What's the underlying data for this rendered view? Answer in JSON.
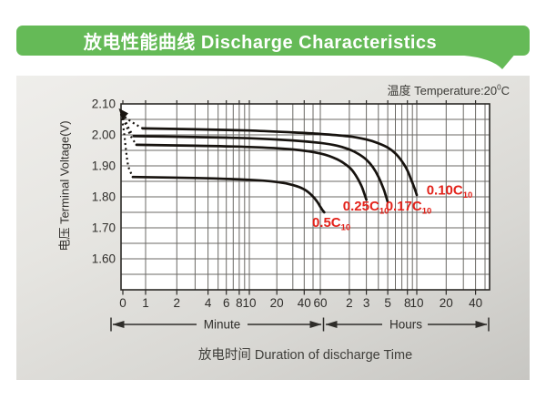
{
  "banner": {
    "title": "放电性能曲线 Discharge Characteristics"
  },
  "temperature": {
    "prefix": "温度  Temperature:20",
    "degree": "0",
    "unit": "C"
  },
  "colors": {
    "banner_green": "#65ba57",
    "curve": "#17130f",
    "series_label_red": "#e3231b",
    "grid": "#6b6965",
    "plot_border": "#2b2926",
    "text_dark": "#2f2d2a"
  },
  "chart_data": {
    "type": "line",
    "title": "放电性能曲线 Discharge Characteristics",
    "subtitle": "温度 Temperature:20°C",
    "ylabel": "电压 Terminal Voltage(V)",
    "xlabel": "放电时间  Duration of discharge Time",
    "x_axis": {
      "scale": "piecewise-log (minutes then hours)",
      "unit_segments": [
        {
          "label": "Minute"
        },
        {
          "label": "Hours"
        }
      ],
      "labeled_ticks": [
        {
          "t": 0,
          "label": "0"
        },
        {
          "t": 1,
          "label": "1"
        },
        {
          "t": 2,
          "label": "2"
        },
        {
          "t": 4,
          "label": "4"
        },
        {
          "t": 6,
          "label": "6"
        },
        {
          "t": 8,
          "label": "8"
        },
        {
          "t": 10,
          "label": "10"
        },
        {
          "t": 20,
          "label": "20"
        },
        {
          "t": 40,
          "label": "40"
        },
        {
          "t": 60,
          "label": "60"
        },
        {
          "t": 120,
          "label": "2"
        },
        {
          "t": 180,
          "label": "3"
        },
        {
          "t": 300,
          "label": "5"
        },
        {
          "t": 480,
          "label": "8"
        },
        {
          "t": 600,
          "label": "10"
        },
        {
          "t": 1200,
          "label": "20"
        },
        {
          "t": 2400,
          "label": "40"
        }
      ],
      "grid_ticks_minutes": [
        1,
        2,
        3,
        4,
        5,
        6,
        7,
        8,
        9,
        10,
        20,
        30,
        40,
        50,
        60,
        120,
        180,
        240,
        300,
        360,
        420,
        480,
        540,
        600,
        1200,
        1800,
        2400,
        3000
      ]
    },
    "y_axis": {
      "min": 1.5,
      "max": 2.1,
      "grid_step": 0.05,
      "labeled_ticks": [
        {
          "v": 2.1,
          "label": "2.10"
        },
        {
          "v": 2.0,
          "label": "2.00"
        },
        {
          "v": 1.9,
          "label": "1.90"
        },
        {
          "v": 1.8,
          "label": "1.80"
        },
        {
          "v": 1.7,
          "label": "1.70"
        },
        {
          "v": 1.6,
          "label": "1.60"
        }
      ]
    },
    "open_circuit_start": {
      "t": 0,
      "v": 2.068
    },
    "series": [
      {
        "name": "0.10C10",
        "label": {
          "text": "0.10C",
          "sub": "10",
          "t": 1300,
          "v": 1.822
        },
        "lead_in_dotted": [
          [
            0,
            2.068
          ],
          [
            0.25,
            2.052
          ],
          [
            0.55,
            2.036
          ],
          [
            0.88,
            2.021
          ]
        ],
        "points": [
          [
            0.88,
            2.021
          ],
          [
            3,
            2.018
          ],
          [
            10,
            2.014
          ],
          [
            30,
            2.008
          ],
          [
            60,
            2.003
          ],
          [
            120,
            1.995
          ],
          [
            180,
            1.985
          ],
          [
            240,
            1.973
          ],
          [
            300,
            1.959
          ],
          [
            360,
            1.94
          ],
          [
            420,
            1.915
          ],
          [
            480,
            1.885
          ],
          [
            530,
            1.852
          ],
          [
            565,
            1.83
          ],
          [
            585,
            1.817
          ],
          [
            600,
            1.806
          ]
        ]
      },
      {
        "name": "0.17C10",
        "label": {
          "text": "0.17C",
          "sub": "10",
          "t": 493,
          "v": 1.771
        },
        "lead_in_dotted": [
          [
            0,
            2.068
          ],
          [
            0.2,
            2.04
          ],
          [
            0.36,
            2.014
          ],
          [
            0.52,
            1.996
          ]
        ],
        "points": [
          [
            0.52,
            1.996
          ],
          [
            3,
            1.993
          ],
          [
            10,
            1.989
          ],
          [
            30,
            1.982
          ],
          [
            60,
            1.974
          ],
          [
            90,
            1.965
          ],
          [
            120,
            1.953
          ],
          [
            150,
            1.938
          ],
          [
            180,
            1.92
          ],
          [
            210,
            1.896
          ],
          [
            240,
            1.865
          ],
          [
            270,
            1.828
          ],
          [
            285,
            1.806
          ],
          [
            300,
            1.783
          ]
        ]
      },
      {
        "name": "0.25C10",
        "label": {
          "text": "0.25C",
          "sub": "10",
          "t": 178,
          "v": 1.771
        },
        "lead_in_dotted": [
          [
            0,
            2.068
          ],
          [
            0.22,
            2.028
          ],
          [
            0.42,
            1.993
          ],
          [
            0.63,
            1.968
          ]
        ],
        "points": [
          [
            0.63,
            1.968
          ],
          [
            3,
            1.965
          ],
          [
            10,
            1.961
          ],
          [
            30,
            1.953
          ],
          [
            60,
            1.94
          ],
          [
            90,
            1.921
          ],
          [
            120,
            1.895
          ],
          [
            140,
            1.869
          ],
          [
            160,
            1.836
          ],
          [
            170,
            1.814
          ],
          [
            180,
            1.791
          ]
        ]
      },
      {
        "name": "0.5C10",
        "label": {
          "text": "0.5C",
          "sub": "10",
          "t": 78,
          "v": 1.718
        },
        "lead_in_dotted": [
          [
            0,
            2.068
          ],
          [
            0.12,
            2.01
          ],
          [
            0.2,
            1.952
          ],
          [
            0.3,
            1.898
          ],
          [
            0.48,
            1.864
          ]
        ],
        "points": [
          [
            0.48,
            1.864
          ],
          [
            3,
            1.861
          ],
          [
            10,
            1.855
          ],
          [
            20,
            1.848
          ],
          [
            30,
            1.838
          ],
          [
            40,
            1.824
          ],
          [
            48,
            1.806
          ],
          [
            55,
            1.786
          ],
          [
            60,
            1.768
          ],
          [
            63,
            1.758
          ],
          [
            66,
            1.75
          ]
        ]
      }
    ],
    "range_arrows": {
      "minute_label": "Minute",
      "hours_label": "Hours"
    }
  }
}
